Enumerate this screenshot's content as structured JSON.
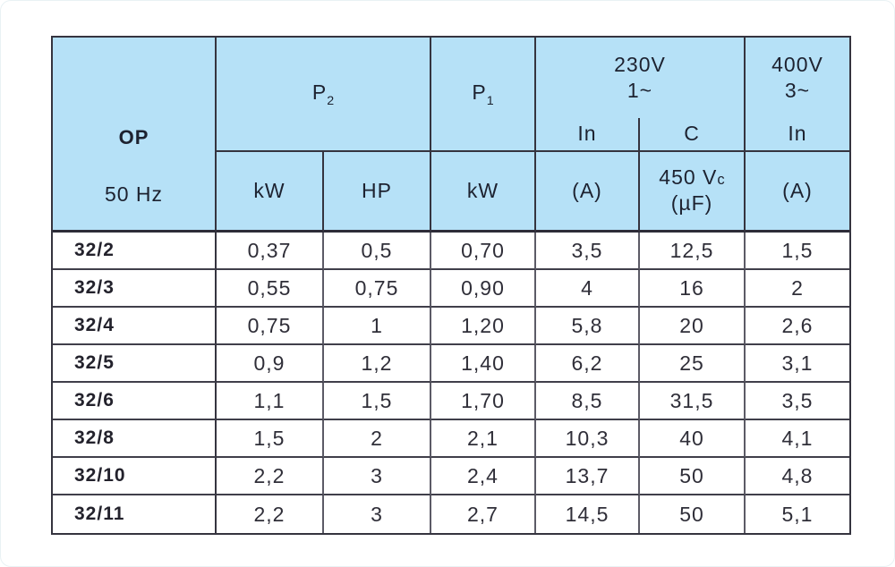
{
  "colors": {
    "header_background": "#b6e1f7",
    "header_text": "#1d2230",
    "border_dark": "#35343f",
    "grid_line": "#5c5b66",
    "page_background": "#ffffff"
  },
  "table": {
    "header": {
      "op_label": "OP",
      "freq_label": "50 Hz",
      "p2_main": "P",
      "p2_sub": "2",
      "p1_main": "P",
      "p1_sub": "1",
      "v230_line1": "230V",
      "v230_line2": "1~",
      "v400_line1": "400V",
      "v400_line2": "3~",
      "in_230_label": "In",
      "c_label": "C",
      "in_400_label": "In",
      "p2_kw_unit": "kW",
      "p2_hp_unit": "HP",
      "p1_kw_unit": "kW",
      "in_230_unit": "(A)",
      "cap_line1_main": "450 V",
      "cap_line1_sub": "c",
      "cap_line2": "(µF)",
      "in_400_unit": "(A)"
    },
    "rows": [
      {
        "model": "32/2",
        "values": [
          "0,37",
          "0,5",
          "0,70",
          "3,5",
          "12,5",
          "1,5"
        ]
      },
      {
        "model": "32/3",
        "values": [
          "0,55",
          "0,75",
          "0,90",
          "4",
          "16",
          "2"
        ]
      },
      {
        "model": "32/4",
        "values": [
          "0,75",
          "1",
          "1,20",
          "5,8",
          "20",
          "2,6"
        ]
      },
      {
        "model": "32/5",
        "values": [
          "0,9",
          "1,2",
          "1,40",
          "6,2",
          "25",
          "3,1"
        ]
      },
      {
        "model": "32/6",
        "values": [
          "1,1",
          "1,5",
          "1,70",
          "8,5",
          "31,5",
          "3,5"
        ]
      },
      {
        "model": "32/8",
        "values": [
          "1,5",
          "2",
          "2,1",
          "10,3",
          "40",
          "4,1"
        ]
      },
      {
        "model": "32/10",
        "values": [
          "2,2",
          "3",
          "2,4",
          "13,7",
          "50",
          "4,8"
        ]
      },
      {
        "model": "32/11",
        "values": [
          "2,2",
          "3",
          "2,7",
          "14,5",
          "50",
          "5,1"
        ]
      }
    ]
  }
}
